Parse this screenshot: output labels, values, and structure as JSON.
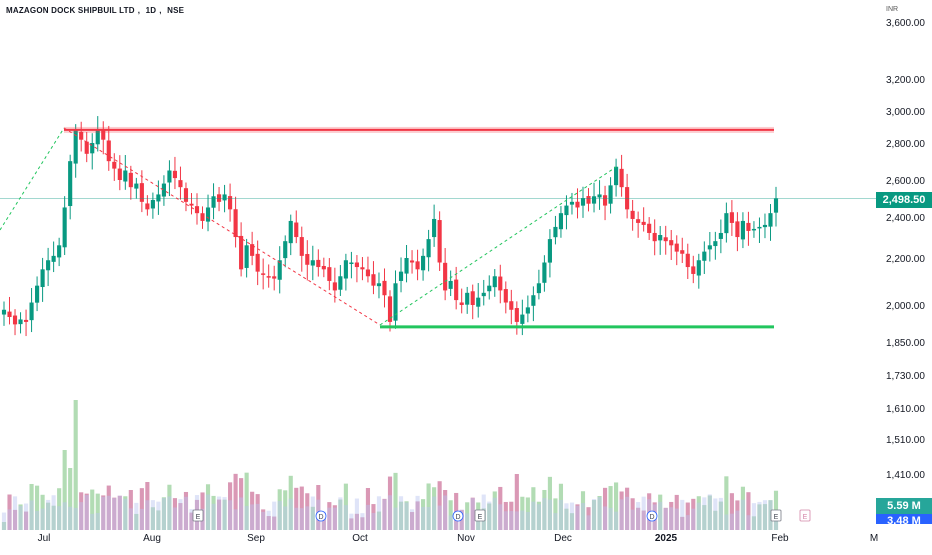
{
  "header": {
    "symbol": "MAZAGON DOCK SHIPBUIL LTD",
    "interval": "1D",
    "exchange": "NSE",
    "currency": "INR"
  },
  "price_badges": {
    "last_price": "2,498.50",
    "volume_a": "5.59 M",
    "volume_b": "3.48 M",
    "last_color": "#089981",
    "volume_color": "#26a69a",
    "volume_b_color": "#2962ff"
  },
  "colors": {
    "up": "#089981",
    "down": "#f23645",
    "vol_up": "#a5d6a7",
    "vol_down": "#d486a8",
    "vol_neutral": "#b8c4f0",
    "resistance": "#f23645",
    "support": "#22c55e"
  },
  "chart_data": {
    "type": "candlestick",
    "scale": "log",
    "y_ticks": [
      "3,600.00",
      "3,200.00",
      "3,000.00",
      "2,800.00",
      "2,600.00",
      "2,400.00",
      "2,200.00",
      "2,000.00",
      "1,850.00",
      "1,730.00",
      "1,610.00",
      "1,510.00",
      "1,410.00"
    ],
    "x_ticks": [
      "Jul",
      "Aug",
      "Sep",
      "Oct",
      "Nov",
      "Dec",
      "2025",
      "Feb",
      "M"
    ],
    "last_price": 2498.5,
    "resistance_level": 2880,
    "support_level": 1910,
    "event_markers": [
      "E",
      "D",
      "D",
      "E",
      "D",
      "E"
    ],
    "candles_close": [
      1980,
      1950,
      1920,
      1940,
      1930,
      2010,
      2080,
      2150,
      2190,
      2210,
      2260,
      2450,
      2700,
      2880,
      2820,
      2740,
      2800,
      2880,
      2820,
      2700,
      2660,
      2600,
      2650,
      2560,
      2580,
      2480,
      2440,
      2490,
      2520,
      2580,
      2650,
      2610,
      2560,
      2480,
      2460,
      2420,
      2380,
      2450,
      2510,
      2480,
      2520,
      2440,
      2300,
      2150,
      2260,
      2210,
      2140,
      2130,
      2120,
      2110,
      2190,
      2280,
      2380,
      2300,
      2210,
      2170,
      2190,
      2160,
      2150,
      2100,
      2060,
      2120,
      2190,
      2180,
      2160,
      2150,
      2120,
      2080,
      2090,
      2040,
      1930,
      2090,
      2140,
      2200,
      2180,
      2150,
      2210,
      2290,
      2390,
      2180,
      2060,
      2100,
      2020,
      2000,
      2050,
      2000,
      2030,
      2050,
      2080,
      2120,
      2060,
      2010,
      1980,
      1930,
      1960,
      1990,
      2040,
      2090,
      2180,
      2290,
      2350,
      2420,
      2460,
      2480,
      2450,
      2500,
      2470,
      2510,
      2520,
      2460,
      2570,
      2670,
      2560,
      2440,
      2390,
      2370,
      2360,
      2320,
      2280,
      2310,
      2280,
      2260,
      2230,
      2220,
      2160,
      2130,
      2190,
      2230,
      2260,
      2280,
      2320,
      2420,
      2370,
      2300,
      2380,
      2330,
      2340,
      2350,
      2360,
      2420,
      2498.5
    ]
  }
}
